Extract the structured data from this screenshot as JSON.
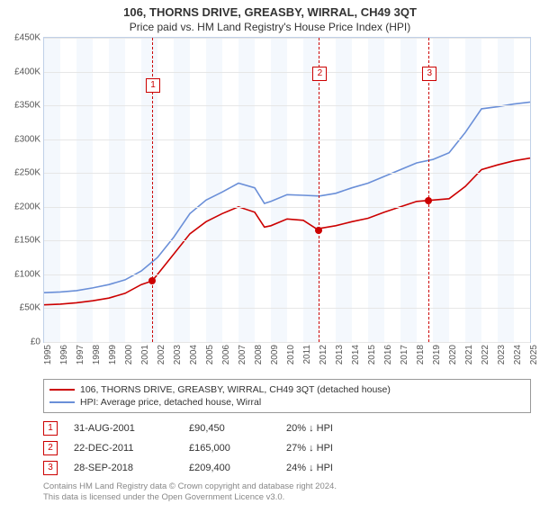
{
  "title": "106, THORNS DRIVE, GREASBY, WIRRAL, CH49 3QT",
  "subtitle": "Price paid vs. HM Land Registry's House Price Index (HPI)",
  "chart": {
    "type": "line",
    "background_color": "#ffffff",
    "plot_border_color": "#c0d0e8",
    "grid_color": "#e6e6e6",
    "band_color": "#f4f8fd",
    "ylim": [
      0,
      450000
    ],
    "ytick_step": 50000,
    "xlim": [
      1995,
      2025
    ],
    "xtick_step": 1,
    "currency": "£",
    "y_ticks": [
      "£0",
      "£50K",
      "£100K",
      "£150K",
      "£200K",
      "£250K",
      "£300K",
      "£350K",
      "£400K",
      "£450K"
    ],
    "x_ticks": [
      "1995",
      "1996",
      "1997",
      "1998",
      "1999",
      "2000",
      "2001",
      "2002",
      "2003",
      "2004",
      "2005",
      "2006",
      "2007",
      "2008",
      "2009",
      "2010",
      "2011",
      "2012",
      "2013",
      "2014",
      "2015",
      "2016",
      "2017",
      "2018",
      "2019",
      "2020",
      "2021",
      "2022",
      "2023",
      "2024",
      "2025"
    ],
    "series": [
      {
        "name": "property",
        "label": "106, THORNS DRIVE, GREASBY, WIRRAL, CH49 3QT (detached house)",
        "color": "#cc0000",
        "line_width": 1.6,
        "data": [
          [
            1995,
            55000
          ],
          [
            1996,
            56000
          ],
          [
            1997,
            58000
          ],
          [
            1998,
            61000
          ],
          [
            1999,
            65000
          ],
          [
            2000,
            72000
          ],
          [
            2001,
            85000
          ],
          [
            2001.67,
            90450
          ],
          [
            2002,
            100000
          ],
          [
            2003,
            130000
          ],
          [
            2004,
            160000
          ],
          [
            2005,
            178000
          ],
          [
            2006,
            190000
          ],
          [
            2007,
            200000
          ],
          [
            2008,
            192000
          ],
          [
            2008.6,
            170000
          ],
          [
            2009,
            172000
          ],
          [
            2010,
            182000
          ],
          [
            2011,
            180000
          ],
          [
            2011.97,
            165000
          ],
          [
            2012,
            168000
          ],
          [
            2013,
            172000
          ],
          [
            2014,
            178000
          ],
          [
            2015,
            183000
          ],
          [
            2016,
            192000
          ],
          [
            2017,
            200000
          ],
          [
            2018,
            208000
          ],
          [
            2018.74,
            209400
          ],
          [
            2019,
            210000
          ],
          [
            2020,
            212000
          ],
          [
            2021,
            230000
          ],
          [
            2022,
            255000
          ],
          [
            2023,
            262000
          ],
          [
            2024,
            268000
          ],
          [
            2025,
            272000
          ]
        ]
      },
      {
        "name": "hpi",
        "label": "HPI: Average price, detached house, Wirral",
        "color": "#6a8fd8",
        "line_width": 1.6,
        "data": [
          [
            1995,
            73000
          ],
          [
            1996,
            74000
          ],
          [
            1997,
            76000
          ],
          [
            1998,
            80000
          ],
          [
            1999,
            85000
          ],
          [
            2000,
            92000
          ],
          [
            2001,
            105000
          ],
          [
            2002,
            125000
          ],
          [
            2003,
            155000
          ],
          [
            2004,
            190000
          ],
          [
            2005,
            210000
          ],
          [
            2006,
            222000
          ],
          [
            2007,
            235000
          ],
          [
            2008,
            228000
          ],
          [
            2008.6,
            205000
          ],
          [
            2009,
            208000
          ],
          [
            2010,
            218000
          ],
          [
            2011,
            217000
          ],
          [
            2012,
            216000
          ],
          [
            2013,
            220000
          ],
          [
            2014,
            228000
          ],
          [
            2015,
            235000
          ],
          [
            2016,
            245000
          ],
          [
            2017,
            255000
          ],
          [
            2018,
            265000
          ],
          [
            2019,
            270000
          ],
          [
            2020,
            280000
          ],
          [
            2021,
            310000
          ],
          [
            2022,
            345000
          ],
          [
            2023,
            348000
          ],
          [
            2024,
            352000
          ],
          [
            2025,
            355000
          ]
        ]
      }
    ],
    "event_lines": [
      {
        "num": "1",
        "x": 2001.67,
        "marker_top": 45,
        "point_y": 90450
      },
      {
        "num": "2",
        "x": 2011.97,
        "marker_top": 32,
        "point_y": 165000
      },
      {
        "num": "3",
        "x": 2018.74,
        "marker_top": 32,
        "point_y": 209400
      }
    ],
    "event_line_color": "#cc0000",
    "point_color": "#cc0000"
  },
  "legend": [
    {
      "color": "#cc0000",
      "text": "106, THORNS DRIVE, GREASBY, WIRRAL, CH49 3QT (detached house)"
    },
    {
      "color": "#6a8fd8",
      "text": "HPI: Average price, detached house, Wirral"
    }
  ],
  "events": [
    {
      "num": "1",
      "date": "31-AUG-2001",
      "price": "£90,450",
      "diff": "20% ↓ HPI"
    },
    {
      "num": "2",
      "date": "22-DEC-2011",
      "price": "£165,000",
      "diff": "27% ↓ HPI"
    },
    {
      "num": "3",
      "date": "28-SEP-2018",
      "price": "£209,400",
      "diff": "24% ↓ HPI"
    }
  ],
  "footer": {
    "line1": "Contains HM Land Registry data © Crown copyright and database right 2024.",
    "line2": "This data is licensed under the Open Government Licence v3.0."
  }
}
